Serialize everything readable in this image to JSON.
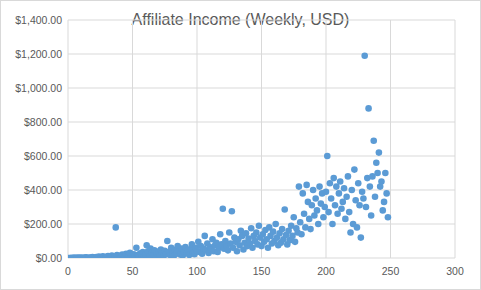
{
  "chart_data": {
    "type": "scatter",
    "title": "Affiliate Income (Weekly, USD)",
    "x": [
      1,
      2,
      3,
      4,
      5,
      6,
      7,
      8,
      9,
      10,
      11,
      12,
      13,
      14,
      15,
      16,
      17,
      18,
      19,
      20,
      21,
      22,
      23,
      24,
      25,
      26,
      27,
      28,
      29,
      30,
      31,
      32,
      33,
      34,
      35,
      36,
      37,
      38,
      39,
      40,
      41,
      42,
      43,
      44,
      45,
      46,
      47,
      48,
      49,
      50,
      51,
      52,
      53,
      54,
      55,
      56,
      57,
      58,
      59,
      60,
      61,
      62,
      63,
      64,
      65,
      66,
      67,
      68,
      69,
      70,
      71,
      72,
      73,
      74,
      75,
      76,
      77,
      78,
      79,
      80,
      81,
      82,
      83,
      84,
      85,
      86,
      87,
      88,
      89,
      90,
      91,
      92,
      93,
      94,
      95,
      96,
      97,
      98,
      99,
      100,
      101,
      102,
      103,
      104,
      105,
      106,
      107,
      108,
      109,
      110,
      111,
      112,
      113,
      114,
      115,
      116,
      117,
      118,
      119,
      120,
      121,
      122,
      123,
      124,
      125,
      126,
      127,
      128,
      129,
      130,
      131,
      132,
      133,
      134,
      135,
      136,
      137,
      138,
      139,
      140,
      141,
      142,
      143,
      144,
      145,
      146,
      147,
      148,
      149,
      150,
      151,
      152,
      153,
      154,
      155,
      156,
      157,
      158,
      159,
      160,
      161,
      162,
      163,
      164,
      165,
      166,
      167,
      168,
      169,
      170,
      171,
      172,
      173,
      174,
      175,
      176,
      177,
      178,
      179,
      180,
      181,
      182,
      183,
      184,
      185,
      186,
      187,
      188,
      189,
      190,
      191,
      192,
      193,
      194,
      195,
      196,
      197,
      198,
      199,
      200,
      201,
      202,
      203,
      204,
      205,
      206,
      207,
      208,
      209,
      210,
      211,
      212,
      213,
      214,
      215,
      216,
      217,
      218,
      219,
      220,
      221,
      222,
      223,
      224,
      225,
      226,
      227,
      228,
      229,
      230,
      231,
      232,
      233,
      234,
      235,
      236,
      237,
      238,
      239,
      240,
      241,
      242,
      243,
      244,
      245,
      246,
      247,
      248
    ],
    "values": [
      0,
      0,
      1,
      0,
      2,
      0,
      1,
      3,
      0,
      2,
      1,
      0,
      2,
      4,
      1,
      0,
      3,
      2,
      5,
      1,
      2,
      6,
      3,
      8,
      1,
      4,
      10,
      5,
      2,
      7,
      12,
      4,
      9,
      15,
      6,
      3,
      180,
      18,
      8,
      11,
      5,
      20,
      14,
      7,
      25,
      9,
      16,
      30,
      12,
      4,
      22,
      10,
      60,
      18,
      8,
      28,
      15,
      35,
      6,
      20,
      75,
      40,
      12,
      55,
      30,
      18,
      45,
      8,
      25,
      38,
      15,
      50,
      28,
      10,
      42,
      22,
      100,
      35,
      18,
      60,
      30,
      12,
      48,
      25,
      70,
      40,
      20,
      55,
      15,
      35,
      65,
      28,
      45,
      18,
      52,
      80,
      30,
      22,
      60,
      40,
      95,
      35,
      70,
      25,
      55,
      130,
      45,
      85,
      30,
      65,
      50,
      110,
      40,
      75,
      90,
      35,
      60,
      140,
      80,
      290,
      55,
      100,
      70,
      45,
      150,
      85,
      275,
      60,
      120,
      95,
      40,
      110,
      75,
      160,
      130,
      50,
      90,
      145,
      70,
      115,
      85,
      175,
      60,
      130,
      100,
      150,
      80,
      190,
      120,
      70,
      140,
      95,
      165,
      110,
      60,
      180,
      130,
      85,
      155,
      100,
      200,
      120,
      75,
      145,
      90,
      170,
      110,
      285,
      135,
      80,
      160,
      105,
      190,
      130,
      240,
      95,
      175,
      150,
      420,
      210,
      140,
      380,
      260,
      180,
      430,
      330,
      230,
      170,
      310,
      400,
      250,
      350,
      280,
      200,
      420,
      320,
      380,
      240,
      300,
      390,
      600,
      270,
      440,
      350,
      200,
      470,
      310,
      420,
      260,
      380,
      450,
      290,
      330,
      410,
      230,
      360,
      480,
      270,
      150,
      400,
      200,
      520,
      340,
      180,
      440,
      310,
      120,
      390,
      350,
      1190,
      300,
      470,
      880,
      420,
      250,
      480,
      690,
      360,
      560,
      500,
      620,
      420,
      450,
      280,
      330,
      500,
      380,
      240
    ],
    "color": "#5b9bd5",
    "marker": "circle",
    "xlim": [
      0,
      300
    ],
    "xticks": [
      0,
      50,
      100,
      150,
      200,
      250,
      300
    ],
    "ylim": [
      0,
      1400
    ],
    "yticks": [
      {
        "value": 0,
        "label": "$0.00"
      },
      {
        "value": 200,
        "label": "$200.00"
      },
      {
        "value": 400,
        "label": "$400.00"
      },
      {
        "value": 600,
        "label": "$600.00"
      },
      {
        "value": 800,
        "label": "$800.00"
      },
      {
        "value": 1000,
        "label": "$1,000.00"
      },
      {
        "value": 1200,
        "label": "$1,200.00"
      },
      {
        "value": 1400,
        "label": "$1,400.00"
      }
    ],
    "grid": true
  }
}
